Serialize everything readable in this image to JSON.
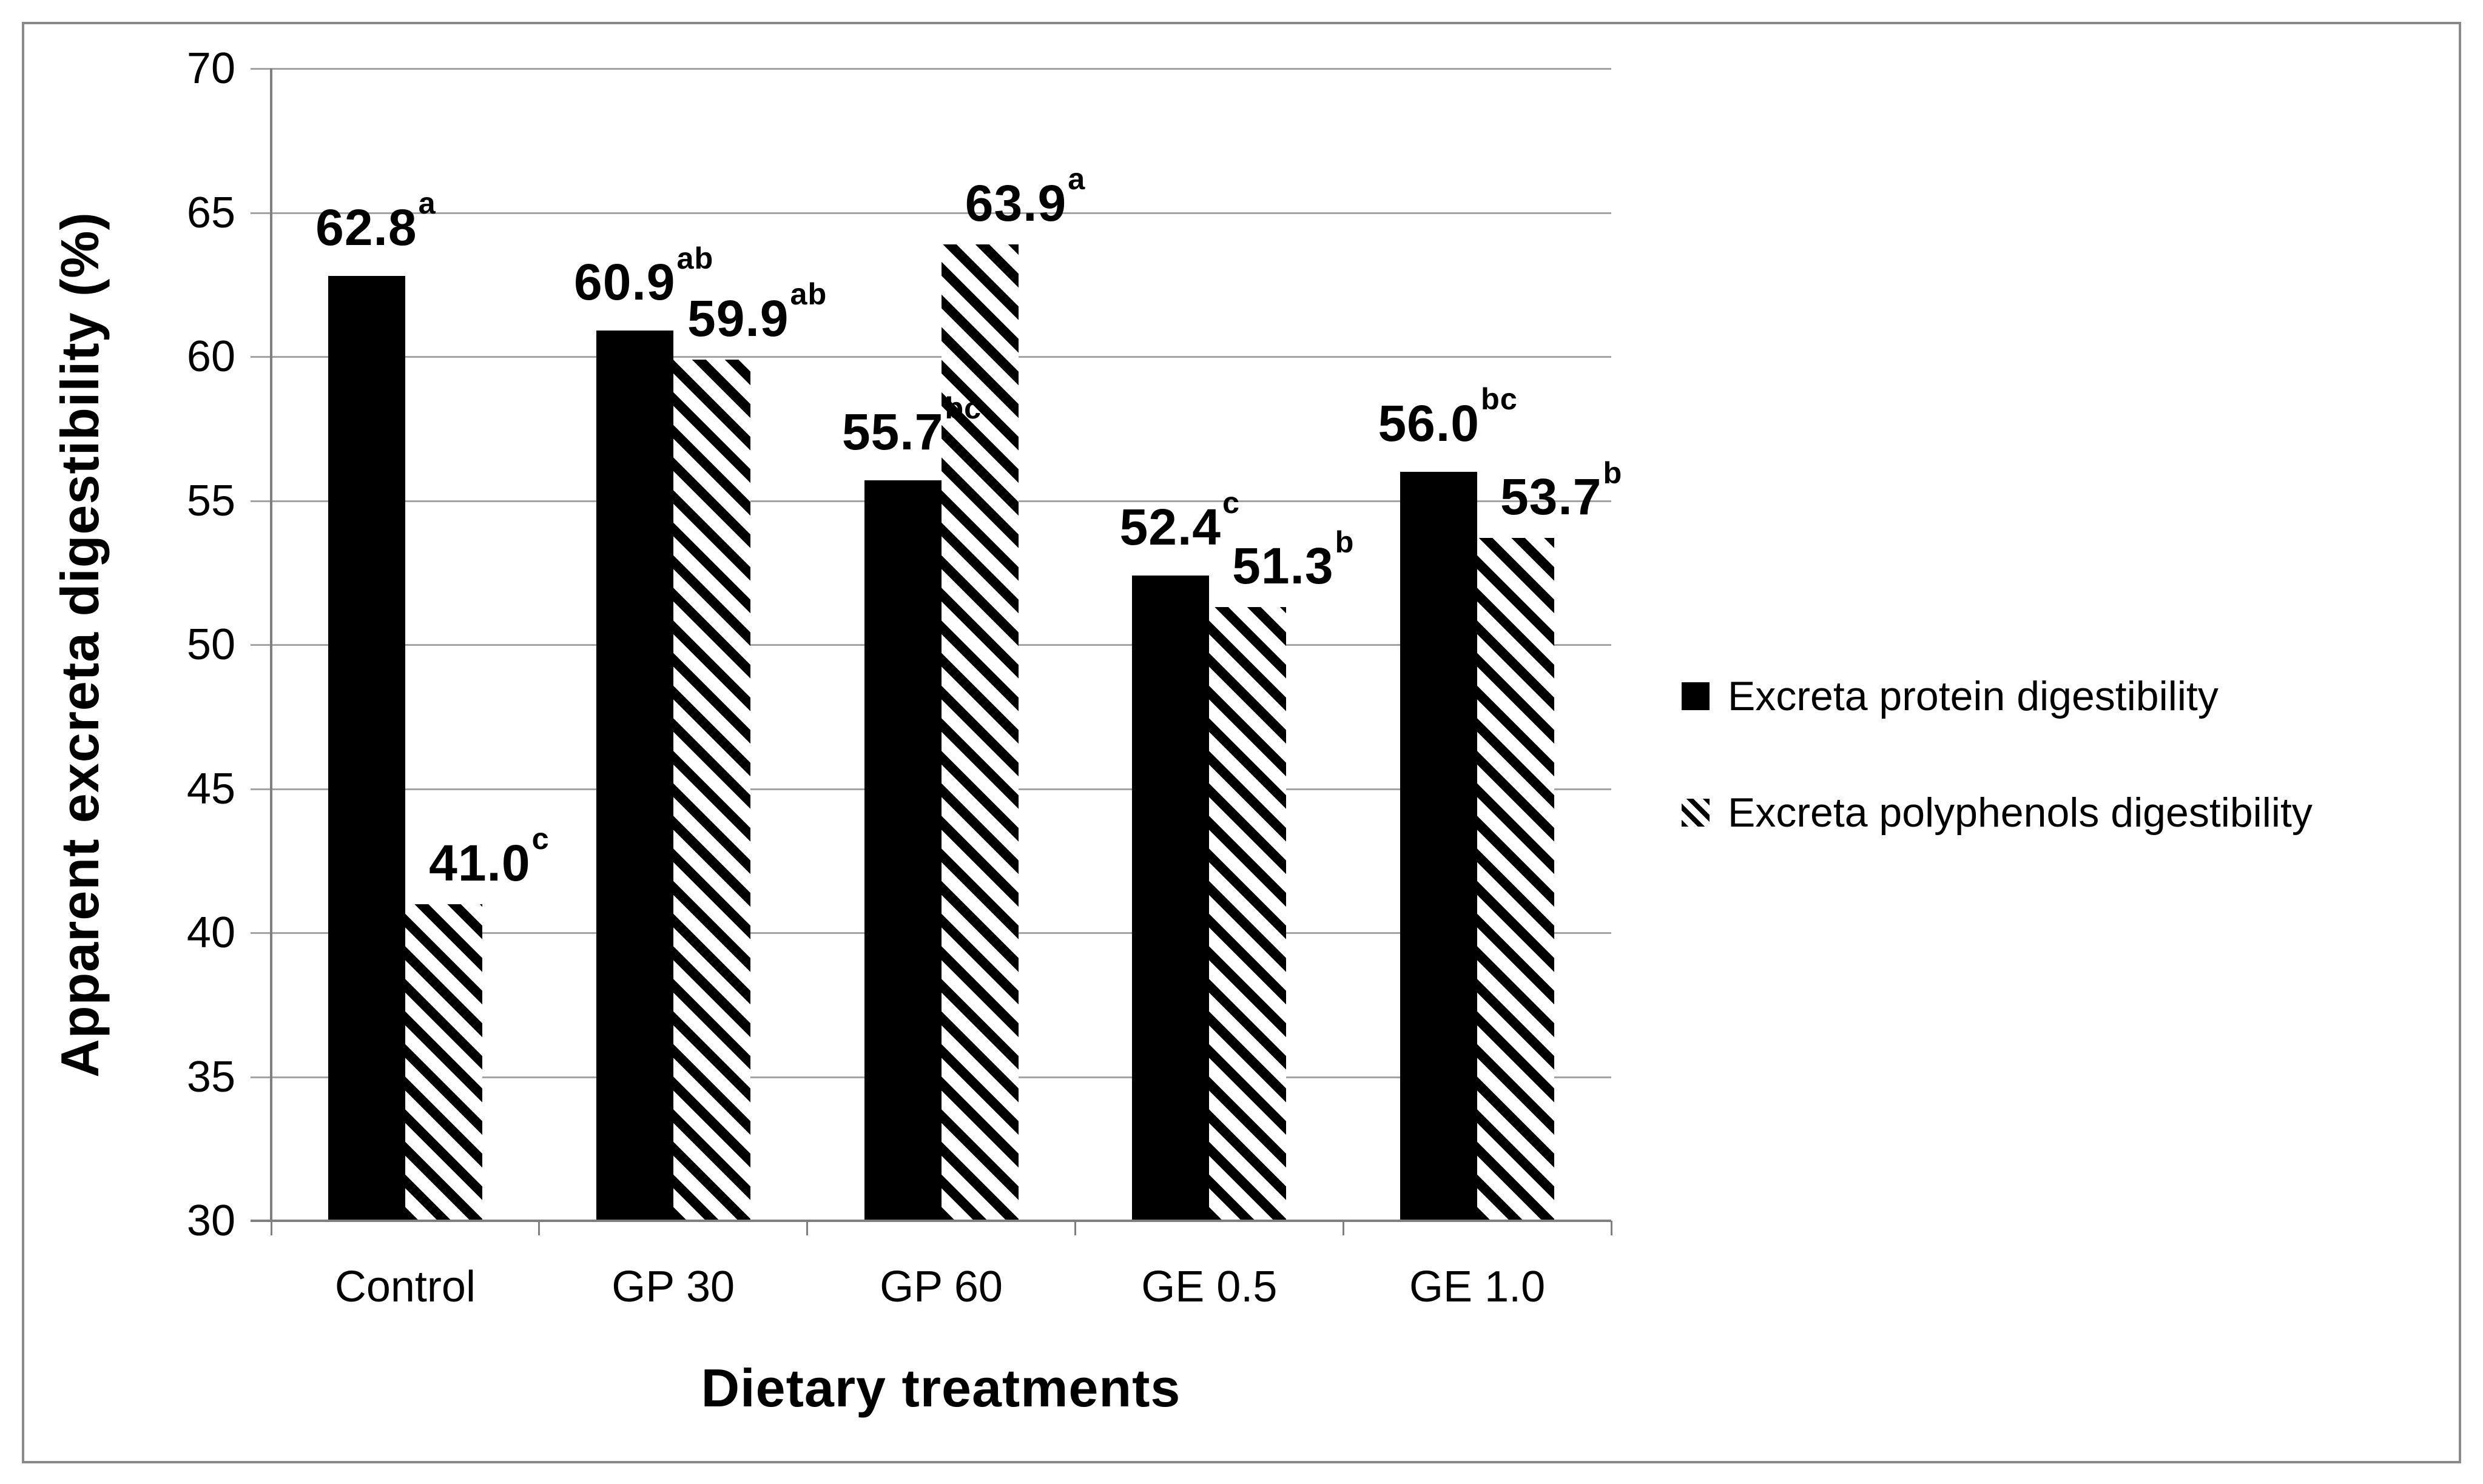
{
  "chart_data": {
    "type": "bar",
    "title": "",
    "categories": [
      "Control",
      "GP 30",
      "GP 60",
      "GE 0.5",
      "GE 1.0"
    ],
    "series": [
      {
        "name": "Excreta protein digestibility",
        "pattern": "solid-black",
        "values": [
          62.8,
          60.9,
          55.7,
          52.4,
          56.0
        ],
        "labels": [
          "62.8",
          "60.9",
          "55.7",
          "52.4",
          "56.0"
        ],
        "superscripts": [
          "a",
          "ab",
          "bc",
          "c",
          "bc"
        ]
      },
      {
        "name": "Excreta polyphenols digestibility",
        "pattern": "diagonal-hatch",
        "values": [
          41.0,
          59.9,
          63.9,
          51.3,
          53.7
        ],
        "labels": [
          "41.0",
          "59.9",
          "63.9",
          "51.3",
          "53.7"
        ],
        "superscripts": [
          "c",
          "ab",
          "a",
          "b",
          "b"
        ]
      }
    ],
    "xlabel": "Dietary treatments",
    "ylabel": "Apparent excreta digestibility (%)",
    "ylim": [
      30,
      70
    ],
    "ytick_step": 5,
    "yticks": [
      30,
      35,
      40,
      45,
      50,
      55,
      60,
      65,
      70
    ],
    "grid": "horizontal-major",
    "legend_position": "right-middle"
  },
  "colors": {
    "bar_fill": "#000000",
    "hatch_background": "#ffffff",
    "gridline": "#a3a3a3",
    "axis_line": "#7f7f7f",
    "outer_border": "#8a8a8a",
    "text": "#000000",
    "background": "#ffffff"
  }
}
